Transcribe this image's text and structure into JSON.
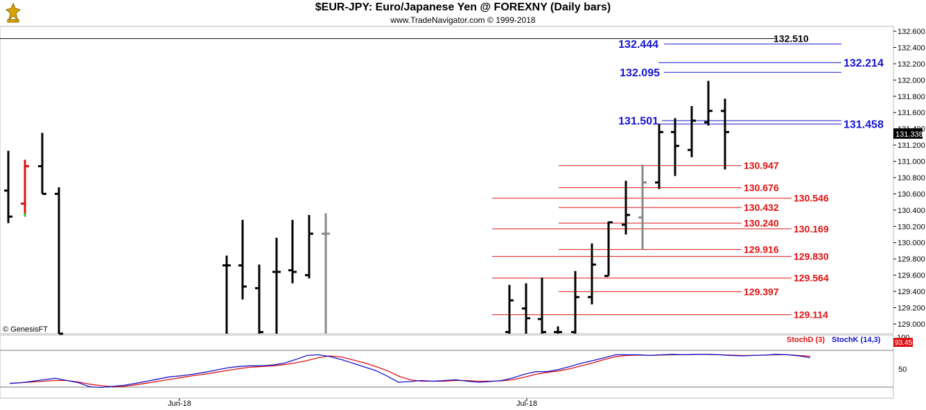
{
  "header": {
    "title": "$EUR-JPY:  Euro/Japanese Yen @ FOREXNY  (Daily bars)",
    "subtitle": "www.TradeNavigator.com © 1999-2018"
  },
  "copyright": "© GenesisFT",
  "colors": {
    "blue_level": "#1414d2",
    "red_level": "#e01010",
    "black_level": "#000000",
    "bar": "#000000",
    "gray_bar": "#888888",
    "stoch_d": "#dd1111",
    "stoch_k": "#1111cc"
  },
  "chart_data": {
    "type": "ohlc",
    "symbol": "$EUR-JPY",
    "period": "Daily bars",
    "price_axis": {
      "ylim": [
        128.88,
        132.66
      ],
      "ticks": [
        "132.600",
        "132.400",
        "132.200",
        "132.000",
        "131.800",
        "131.600",
        "131.400",
        "131.200",
        "131.000",
        "130.800",
        "130.600",
        "130.400",
        "130.200",
        "130.000",
        "129.800",
        "129.600",
        "129.400",
        "129.200",
        "129.000"
      ],
      "last_price": "131.338"
    },
    "date_axis": {
      "labels": [
        "Jun-18",
        "Jul-18"
      ]
    },
    "bars": [
      {
        "o": 130.64,
        "h": 131.13,
        "l": 130.24,
        "c": 130.32,
        "color": "black"
      },
      {
        "o": 130.48,
        "h": 131.02,
        "l": 130.32,
        "c": 130.94,
        "color": "red"
      },
      {
        "o": 130.94,
        "h": 131.35,
        "l": 130.6,
        "c": 130.6,
        "color": "black"
      },
      {
        "o": 130.6,
        "h": 130.68,
        "l": 128.88,
        "c": 128.88,
        "color": "black"
      },
      {
        "o": 129.72,
        "h": 129.84,
        "l": 128.88,
        "c": 129.72,
        "color": "black"
      },
      {
        "o": 129.72,
        "h": 130.28,
        "l": 129.3,
        "c": 129.46,
        "color": "black"
      },
      {
        "o": 129.44,
        "h": 129.73,
        "l": 128.88,
        "c": 128.9,
        "color": "black"
      },
      {
        "o": 129.64,
        "h": 130.06,
        "l": 128.88,
        "c": 129.64,
        "color": "black"
      },
      {
        "o": 129.66,
        "h": 130.28,
        "l": 129.5,
        "c": 129.64,
        "color": "black"
      },
      {
        "o": 129.6,
        "h": 130.34,
        "l": 129.56,
        "c": 130.11,
        "color": "black"
      },
      {
        "o": 130.11,
        "h": 130.36,
        "l": 128.88,
        "c": 130.11,
        "color": "gray"
      },
      {
        "o": 128.9,
        "h": 129.48,
        "l": 128.88,
        "c": 129.29,
        "color": "black"
      },
      {
        "o": 129.19,
        "h": 129.5,
        "l": 128.88,
        "c": 129.07,
        "color": "black"
      },
      {
        "o": 129.06,
        "h": 129.57,
        "l": 128.88,
        "c": 128.9,
        "color": "black"
      },
      {
        "o": 128.9,
        "h": 128.97,
        "l": 128.88,
        "c": 128.9,
        "color": "black"
      },
      {
        "o": 128.9,
        "h": 129.65,
        "l": 128.88,
        "c": 129.33,
        "color": "black"
      },
      {
        "o": 129.33,
        "h": 129.99,
        "l": 129.24,
        "c": 129.73,
        "color": "black"
      },
      {
        "o": 129.59,
        "h": 130.26,
        "l": 129.59,
        "c": 130.25,
        "color": "black"
      },
      {
        "o": 130.22,
        "h": 130.76,
        "l": 130.1,
        "c": 130.34,
        "color": "black"
      },
      {
        "o": 130.31,
        "h": 130.96,
        "l": 129.91,
        "c": 130.74,
        "color": "gray"
      },
      {
        "o": 130.74,
        "h": 131.46,
        "l": 130.66,
        "c": 131.36,
        "color": "black"
      },
      {
        "o": 131.36,
        "h": 131.53,
        "l": 130.82,
        "c": 131.19,
        "color": "black"
      },
      {
        "o": 131.14,
        "h": 131.68,
        "l": 131.05,
        "c": 131.5,
        "color": "black"
      },
      {
        "o": 131.48,
        "h": 131.99,
        "l": 131.44,
        "c": 131.62,
        "color": "black"
      },
      {
        "o": 131.62,
        "h": 131.77,
        "l": 130.9,
        "c": 131.36,
        "color": "black"
      }
    ],
    "levels": [
      {
        "value": 132.51,
        "label": "132.510",
        "color": "black",
        "side": "right"
      },
      {
        "value": 132.444,
        "label": "132.444",
        "color": "blue",
        "side": "left"
      },
      {
        "value": 132.214,
        "label": "132.214",
        "color": "blue",
        "side": "right"
      },
      {
        "value": 132.095,
        "label": "132.095",
        "color": "blue",
        "side": "left"
      },
      {
        "value": 131.501,
        "label": "131.501",
        "color": "blue",
        "side": "left"
      },
      {
        "value": 131.458,
        "label": "131.458",
        "color": "blue",
        "side": "right"
      },
      {
        "value": 130.947,
        "label": "130.947",
        "color": "red",
        "side": "left"
      },
      {
        "value": 130.676,
        "label": "130.676",
        "color": "red",
        "side": "left"
      },
      {
        "value": 130.546,
        "label": "130.546",
        "color": "red",
        "side": "right"
      },
      {
        "value": 130.432,
        "label": "130.432",
        "color": "red",
        "side": "left"
      },
      {
        "value": 130.24,
        "label": "130.240",
        "color": "red",
        "side": "left"
      },
      {
        "value": 130.169,
        "label": "130.169",
        "color": "red",
        "side": "right"
      },
      {
        "value": 129.916,
        "label": "129.916",
        "color": "red",
        "side": "left"
      },
      {
        "value": 129.83,
        "label": "129.830",
        "color": "red",
        "side": "right"
      },
      {
        "value": 129.564,
        "label": "129.564",
        "color": "red",
        "side": "right"
      },
      {
        "value": 129.397,
        "label": "129.397",
        "color": "red",
        "side": "left"
      },
      {
        "value": 129.114,
        "label": "129.114",
        "color": "red",
        "side": "right"
      }
    ],
    "stochastic": {
      "d_label": "StochD (3)",
      "k_label": "StochK (14,3)",
      "value_label": "93.45",
      "ticks": [
        "100",
        "50"
      ],
      "ylim": [
        0,
        100
      ],
      "k": [
        10,
        12,
        16,
        20,
        24,
        18,
        12,
        1,
        -1,
        2,
        5,
        10,
        16,
        22,
        28,
        31,
        35,
        40,
        46,
        52,
        56,
        58,
        58,
        60,
        65,
        75,
        86,
        88,
        83,
        75,
        65,
        55,
        45,
        30,
        13,
        15,
        18,
        16,
        18,
        20,
        16,
        13,
        15,
        18,
        25,
        35,
        42,
        42,
        48,
        56,
        65,
        72,
        80,
        88,
        88,
        88,
        86,
        88,
        89,
        88,
        89,
        89,
        88,
        86,
        85,
        86,
        87,
        89,
        88,
        85,
        80
      ],
      "d": [
        10,
        12,
        14,
        16,
        18,
        18,
        14,
        8,
        4,
        1,
        2,
        6,
        11,
        16,
        21,
        26,
        31,
        35,
        40,
        45,
        50,
        54,
        56,
        58,
        61,
        66,
        72,
        80,
        85,
        82,
        74,
        66,
        56,
        45,
        30,
        20,
        16,
        16,
        16,
        18,
        18,
        16,
        16,
        17,
        20,
        27,
        35,
        40,
        44,
        50,
        58,
        66,
        75,
        83,
        86,
        87,
        86,
        87,
        88,
        88,
        89,
        89,
        88,
        87,
        86,
        86,
        87,
        88,
        88,
        86,
        84
      ]
    }
  }
}
